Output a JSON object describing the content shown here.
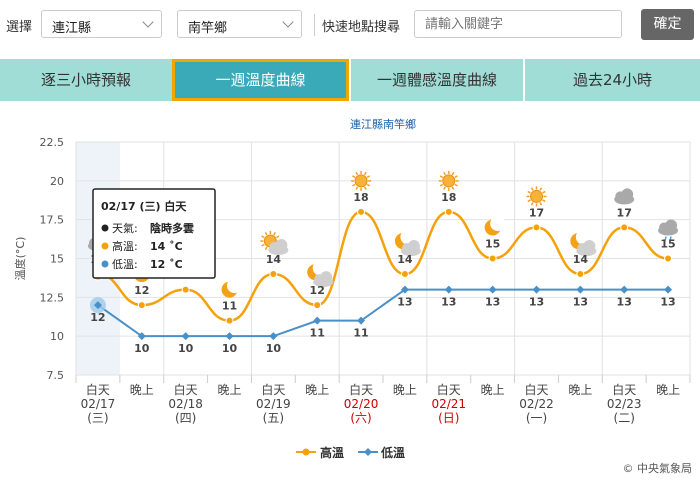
{
  "topbar": {
    "select_label": "選擇",
    "county": "連江縣",
    "township": "南竿鄉",
    "quick_search_label": "快速地點搜尋",
    "search_placeholder": "請輸入關鍵字",
    "confirm_label": "確定"
  },
  "tabs": [
    {
      "label": "逐三小時預報",
      "active": false
    },
    {
      "label": "一週溫度曲線",
      "active": true
    },
    {
      "label": "一週體感溫度曲線",
      "active": false
    },
    {
      "label": "過去24小時",
      "active": false
    }
  ],
  "tooltip": {
    "date": "02/17 (三) 白天",
    "weather_label": "天氣",
    "weather": "陰時多雲",
    "high_label": "高溫",
    "high": "14 ˚C",
    "low_label": "低溫",
    "low": "12 ˚C"
  },
  "copyright": "© 中央氣象局",
  "colors": {
    "high": "#f5a10c",
    "low": "#4a90c8",
    "weekend": "#cc0000"
  },
  "chart_data": {
    "type": "line",
    "title": "連江縣南竿鄉",
    "ylabel": "溫度(°C)",
    "ylim": [
      7.5,
      22.5
    ],
    "yticks": [
      7.5,
      10,
      12.5,
      15,
      17.5,
      20,
      22.5
    ],
    "categories": [
      {
        "period": "白天",
        "date": "02/17",
        "weekday": "(三)",
        "weekend": false,
        "icon": "cloudy-icon"
      },
      {
        "period": "晚上",
        "date": "",
        "weekday": "",
        "weekend": false,
        "icon": "moon-icon"
      },
      {
        "period": "白天",
        "date": "02/18",
        "weekday": "(四)",
        "weekend": false,
        "icon": "sun-icon"
      },
      {
        "period": "晚上",
        "date": "",
        "weekday": "",
        "weekend": false,
        "icon": "moon-icon"
      },
      {
        "period": "白天",
        "date": "02/19",
        "weekday": "(五)",
        "weekend": false,
        "icon": "sun-cloud-icon"
      },
      {
        "period": "晚上",
        "date": "",
        "weekday": "",
        "weekend": false,
        "icon": "moon-cloud-icon"
      },
      {
        "period": "白天",
        "date": "02/20",
        "weekday": "(六)",
        "weekend": true,
        "icon": "sun-icon"
      },
      {
        "period": "晚上",
        "date": "",
        "weekday": "",
        "weekend": false,
        "icon": "moon-cloud-icon"
      },
      {
        "period": "白天",
        "date": "02/21",
        "weekday": "(日)",
        "weekend": true,
        "icon": "sun-icon"
      },
      {
        "period": "晚上",
        "date": "",
        "weekday": "",
        "weekend": false,
        "icon": "moon-icon"
      },
      {
        "period": "白天",
        "date": "02/22",
        "weekday": "(一)",
        "weekend": false,
        "icon": "sun-icon"
      },
      {
        "period": "晚上",
        "date": "",
        "weekday": "",
        "weekend": false,
        "icon": "moon-cloud-icon"
      },
      {
        "period": "白天",
        "date": "02/23",
        "weekday": "(二)",
        "weekend": false,
        "icon": "cloudy-icon"
      },
      {
        "period": "晚上",
        "date": "",
        "weekday": "",
        "weekend": false,
        "icon": "rain-cloud-icon"
      }
    ],
    "series": [
      {
        "name": "高溫",
        "values": [
          14,
          12,
          13,
          11,
          14,
          12,
          18,
          14,
          18,
          15,
          17,
          14,
          17,
          15
        ]
      },
      {
        "name": "低溫",
        "values": [
          12,
          10,
          10,
          10,
          10,
          11,
          11,
          13,
          13,
          13,
          13,
          13,
          13,
          13
        ]
      }
    ],
    "grid": true,
    "legend": "bottom-center"
  }
}
